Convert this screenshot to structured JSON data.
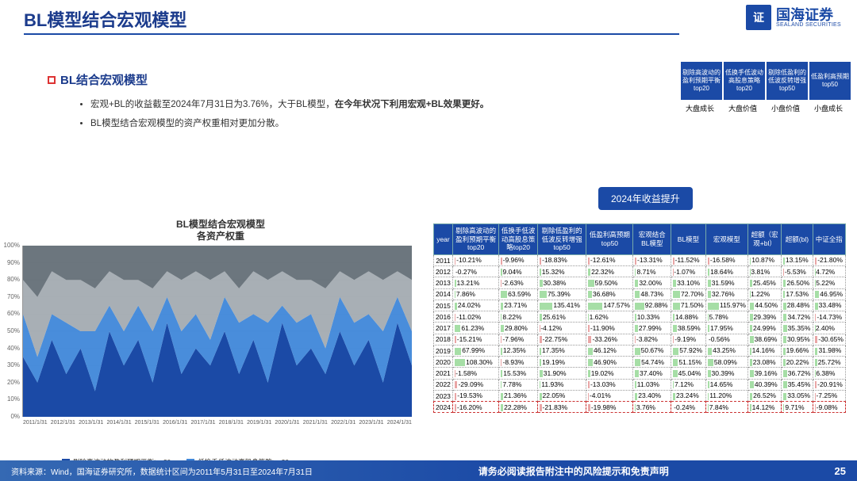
{
  "header": {
    "title": "BL模型结合宏观模型",
    "logo_cn": "国海证券",
    "logo_en": "SEALAND SECURITIES"
  },
  "badges": {
    "items": [
      "剔除高波动的盈利预期平衡top20",
      "低换手低波动高股息策略top20",
      "剔除低盈利的低波反转增强top50",
      "低盈利高预期top50"
    ],
    "sub": [
      "大盘成长",
      "大盘价值",
      "小盘价值",
      "小盘成长"
    ]
  },
  "section": {
    "heading": "BL结合宏观模型",
    "bullets": [
      {
        "pre": "宏观+BL的收益截至2024年7月31日为3.76%，大于BL模型，",
        "bold": "在今年状况下利用宏观+BL效果更好。",
        "post": ""
      },
      {
        "pre": "BL模型结合宏观模型的资产权重相对更加分散。",
        "bold": "",
        "post": ""
      }
    ]
  },
  "pill": {
    "label": "2024年收益提升"
  },
  "chart": {
    "title_line1": "BL模型结合宏观模型",
    "title_line2": "各资产权重",
    "type": "stacked_area",
    "ylim": [
      0,
      100
    ],
    "ytick_step": 10,
    "ytick_suffix": "%",
    "yticks": [
      0,
      10,
      20,
      30,
      40,
      50,
      60,
      70,
      80,
      90,
      100
    ],
    "xticks": [
      "2011/1/31",
      "2012/1/31",
      "2013/1/31",
      "2014/1/31",
      "2015/1/31",
      "2016/1/31",
      "2017/1/31",
      "2018/1/31",
      "2019/1/31",
      "2020/1/31",
      "2021/1/31",
      "2022/1/31",
      "2023/1/31",
      "2024/1/31"
    ],
    "series": [
      {
        "name": "剔除高波动的盈利预期平衡top20",
        "color": "#1b4aa6"
      },
      {
        "name": "低换手低波动高股息策略top20",
        "color": "#3f87d9"
      },
      {
        "name": "剔除低盈利的低波反转增强top50",
        "color": "#9ea6ad"
      },
      {
        "name": "低盈利高预期top50",
        "color": "#5c6770"
      }
    ],
    "stacks": [
      [
        35,
        25,
        20,
        20
      ],
      [
        20,
        15,
        35,
        30
      ],
      [
        45,
        15,
        25,
        15
      ],
      [
        25,
        30,
        25,
        20
      ],
      [
        40,
        10,
        30,
        20
      ],
      [
        15,
        35,
        25,
        25
      ],
      [
        50,
        15,
        20,
        15
      ],
      [
        30,
        20,
        30,
        20
      ],
      [
        45,
        20,
        15,
        20
      ],
      [
        20,
        30,
        25,
        25
      ],
      [
        55,
        15,
        15,
        15
      ],
      [
        25,
        25,
        30,
        20
      ],
      [
        40,
        20,
        25,
        15
      ],
      [
        30,
        15,
        35,
        20
      ],
      [
        50,
        20,
        15,
        15
      ],
      [
        25,
        30,
        20,
        25
      ],
      [
        45,
        15,
        25,
        15
      ],
      [
        20,
        35,
        25,
        20
      ],
      [
        55,
        10,
        20,
        15
      ],
      [
        30,
        25,
        25,
        20
      ],
      [
        40,
        20,
        20,
        20
      ],
      [
        25,
        15,
        35,
        25
      ],
      [
        50,
        20,
        15,
        15
      ],
      [
        30,
        25,
        25,
        20
      ],
      [
        45,
        15,
        25,
        15
      ],
      [
        20,
        30,
        30,
        20
      ],
      [
        55,
        15,
        15,
        15
      ],
      [
        30,
        20,
        30,
        20
      ]
    ],
    "background_color": "#ffffff",
    "grid_color": "#d0d0d0",
    "label_fontsize": 8
  },
  "table": {
    "columns": [
      "year",
      "剔除高波动的盈利预期平衡top20",
      "低换手低波动高股息策略top20",
      "剔除低盈利的低波反转增强top50",
      "低盈利高预期top50",
      "宏观结合BL模型",
      "BL模型",
      "宏观模型",
      "超额（宏观+bl）",
      "超额(bl)",
      "中证全指"
    ],
    "neg_bar_color": "#c00000",
    "pos_bar_color": "#00a000",
    "bar_opacity": 0.35,
    "highlight_row_year": "2024",
    "rows": [
      [
        "2011",
        "-10.21%",
        "-9.96%",
        "-18.83%",
        "-12.61%",
        "-13.31%",
        "-11.52%",
        "-16.58%",
        "10.87%",
        "13.15%",
        "-21.80%"
      ],
      [
        "2012",
        "-0.27%",
        "9.04%",
        "15.32%",
        "22.32%",
        "8.71%",
        "-1.07%",
        "18.64%",
        "3.81%",
        "-5.53%",
        "4.72%"
      ],
      [
        "2013",
        "13.21%",
        "-2.63%",
        "30.38%",
        "59.50%",
        "32.00%",
        "33.10%",
        "31.59%",
        "25.45%",
        "26.50%",
        "5.22%"
      ],
      [
        "2014",
        "7.86%",
        "63.59%",
        "75.39%",
        "36.68%",
        "48.73%",
        "72.70%",
        "32.76%",
        "1.22%",
        "17.53%",
        "46.95%"
      ],
      [
        "2015",
        "24.02%",
        "23.71%",
        "135.41%",
        "147.57%",
        "92.88%",
        "71.50%",
        "115.97%",
        "44.50%",
        "28.48%",
        "33.48%"
      ],
      [
        "2016",
        "-11.02%",
        "8.22%",
        "25.61%",
        "1.62%",
        "10.33%",
        "14.88%",
        "5.78%",
        "29.39%",
        "34.72%",
        "-14.73%"
      ],
      [
        "2017",
        "61.23%",
        "29.80%",
        "-4.12%",
        "-11.90%",
        "27.99%",
        "38.59%",
        "17.95%",
        "24.99%",
        "35.35%",
        "2.40%"
      ],
      [
        "2018",
        "-15.21%",
        "-7.96%",
        "-22.75%",
        "-33.26%",
        "-3.82%",
        "-9.19%",
        "-0.56%",
        "38.69%",
        "30.95%",
        "-30.65%"
      ],
      [
        "2019",
        "67.99%",
        "12.35%",
        "17.35%",
        "46.12%",
        "50.67%",
        "57.92%",
        "43.25%",
        "14.16%",
        "19.66%",
        "31.98%"
      ],
      [
        "2020",
        "108.30%",
        "-8.93%",
        "19.19%",
        "46.90%",
        "54.74%",
        "51.15%",
        "58.09%",
        "23.08%",
        "20.22%",
        "25.72%"
      ],
      [
        "2021",
        "-1.58%",
        "15.53%",
        "31.90%",
        "19.02%",
        "37.40%",
        "45.04%",
        "30.39%",
        "39.16%",
        "36.72%",
        "6.38%"
      ],
      [
        "2022",
        "-29.09%",
        "7.78%",
        "11.93%",
        "-13.03%",
        "11.03%",
        "7.12%",
        "14.65%",
        "40.39%",
        "35.45%",
        "-20.91%"
      ],
      [
        "2023",
        "-19.53%",
        "21.36%",
        "22.05%",
        "-4.01%",
        "23.40%",
        "23.24%",
        "11.20%",
        "26.52%",
        "33.05%",
        "-7.25%"
      ],
      [
        "2024",
        "-16.20%",
        "22.28%",
        "-21.83%",
        "-19.98%",
        "3.76%",
        "-0.24%",
        "7.84%",
        "14.12%",
        "9.71%",
        "-9.08%"
      ]
    ]
  },
  "footer": {
    "source": "资料来源：Wind，国海证券研究所，数据统计区间为2011年5月31日至2024年7月31日",
    "disclaimer": "请务必阅读报告附注中的风险提示和免责声明",
    "page": "25"
  },
  "colors": {
    "brand_blue": "#1b4aa6",
    "title_blue": "#1b3b8c"
  }
}
